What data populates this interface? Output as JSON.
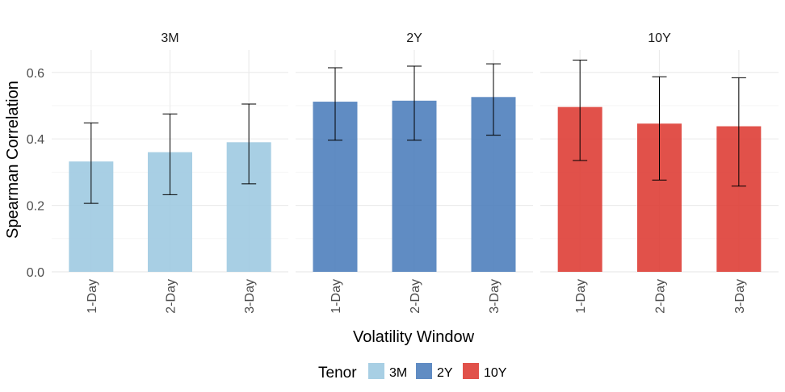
{
  "chart_data": {
    "type": "bar",
    "xlabel": "Volatility Window",
    "ylabel": "Spearman Correlation",
    "ylim": [
      0,
      0.67
    ],
    "yticks": [
      0.0,
      0.2,
      0.4,
      0.6
    ],
    "ytick_labels": [
      "0.0",
      "0.2",
      "0.4",
      "0.6"
    ],
    "categories": [
      "1-Day",
      "2-Day",
      "3-Day"
    ],
    "grid": true,
    "legend": {
      "title": "Tenor",
      "position": "bottom",
      "entries": [
        {
          "label": "3M",
          "color": "#9ecae1"
        },
        {
          "label": "2Y",
          "color": "#4f7fbc"
        },
        {
          "label": "10Y",
          "color": "#de3e36"
        }
      ]
    },
    "panels": [
      {
        "title": "3M",
        "color": "#9ecae1",
        "values": [
          0.332,
          0.36,
          0.39
        ],
        "err_low": [
          0.206,
          0.232,
          0.265
        ],
        "err_high": [
          0.448,
          0.475,
          0.505
        ]
      },
      {
        "title": "2Y",
        "color": "#4f7fbc",
        "values": [
          0.512,
          0.515,
          0.526
        ],
        "err_low": [
          0.396,
          0.396,
          0.411
        ],
        "err_high": [
          0.614,
          0.619,
          0.626
        ]
      },
      {
        "title": "10Y",
        "color": "#de3e36",
        "values": [
          0.496,
          0.446,
          0.438
        ],
        "err_low": [
          0.335,
          0.276,
          0.258
        ],
        "err_high": [
          0.637,
          0.587,
          0.584
        ]
      }
    ]
  }
}
